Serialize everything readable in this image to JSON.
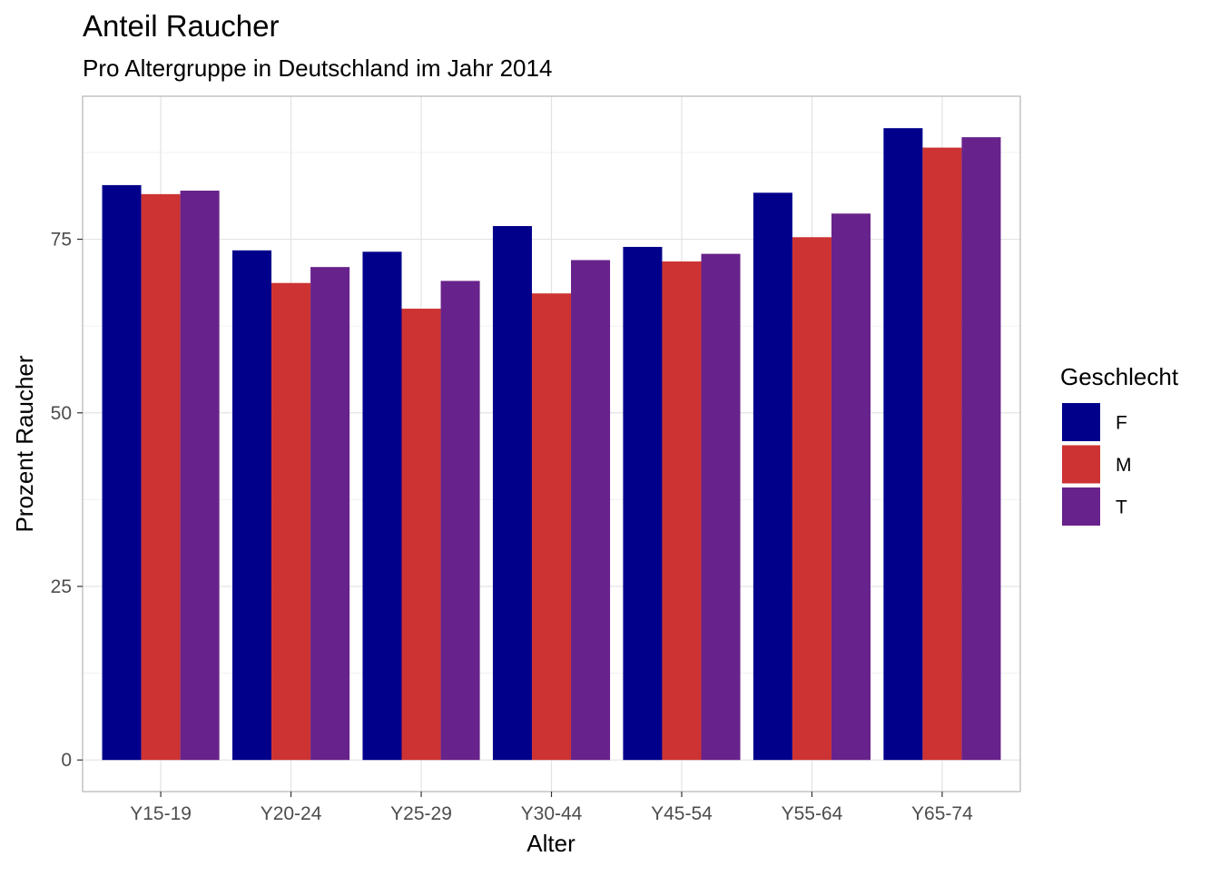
{
  "chart_data": {
    "type": "bar",
    "title": "Anteil Raucher",
    "subtitle": "Pro Altergruppe in Deutschland im Jahr 2014",
    "xlabel": "Alter",
    "ylabel": "Prozent Raucher",
    "categories": [
      "Y15-19",
      "Y20-24",
      "Y25-29",
      "Y30-44",
      "Y45-54",
      "Y55-64",
      "Y65-74"
    ],
    "series": [
      {
        "name": "F",
        "color": "#00008b",
        "values": [
          82.8,
          73.4,
          73.2,
          76.9,
          73.9,
          81.7,
          91.0
        ]
      },
      {
        "name": "M",
        "color": "#cd3333",
        "values": [
          81.5,
          68.7,
          65.0,
          67.2,
          71.8,
          75.3,
          88.2
        ]
      },
      {
        "name": "T",
        "color": "#68228b",
        "values": [
          82.0,
          71.0,
          69.0,
          72.0,
          72.9,
          78.7,
          89.7
        ]
      }
    ],
    "yticks": [
      0,
      25,
      50,
      75
    ],
    "ylim": [
      -4.55,
      95.6
    ],
    "grid": true,
    "legend": {
      "title": "Geschlecht",
      "position": "right"
    }
  }
}
